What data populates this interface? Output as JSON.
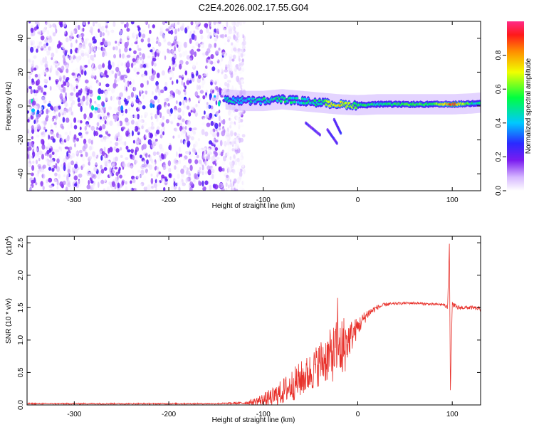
{
  "figure_title": "C2E4.2026.002.17.55.G04",
  "colors": {
    "line": "#e8312b",
    "axes": "#000000"
  },
  "chart_data": [
    {
      "type": "heatmap",
      "title": "C2E4.2026.002.17.55.G04",
      "xlabel": "Height of straight line (km)",
      "ylabel": "Frequency (Hz)",
      "xlim": [
        -350,
        130
      ],
      "ylim": [
        -50,
        50
      ],
      "xticks": [
        -300,
        -200,
        -100,
        0,
        100
      ],
      "xtick_labels": [
        "-300",
        "-200",
        "-100",
        "0",
        "100"
      ],
      "yticks": [
        -40,
        -20,
        0,
        20,
        40
      ],
      "ytick_labels": [
        "-40",
        "-20",
        "0",
        "20",
        "40"
      ],
      "colorbar": {
        "label": "Normalized spectral amplitude",
        "range": [
          0,
          1
        ],
        "ticks": [
          0.0,
          0.2,
          0.4,
          0.6,
          0.8
        ],
        "tick_labels": [
          "0.0",
          "0.2",
          "0.4",
          "0.6",
          "0.8"
        ]
      },
      "noise_region_x": [
        -350,
        -140
      ],
      "signal_trace": {
        "x": [
          -140,
          -120,
          -100,
          -80,
          -60,
          -40,
          -20,
          0,
          20,
          40,
          60,
          80,
          100,
          120,
          130
        ],
        "freq_hz": [
          4,
          3,
          3,
          4,
          3,
          2,
          1,
          0.5,
          1,
          1,
          1,
          1,
          1,
          1.5,
          2
        ],
        "amplitude": [
          0.45,
          0.4,
          0.45,
          0.5,
          0.45,
          0.5,
          0.75,
          0.55,
          0.5,
          0.52,
          0.55,
          0.55,
          0.9,
          0.5,
          0.45
        ]
      },
      "secondary_traces": [
        {
          "x": [
            -55,
            -40
          ],
          "freq_hz": [
            -10,
            -17
          ]
        },
        {
          "x": [
            -32,
            -22
          ],
          "freq_hz": [
            -14,
            -22
          ]
        },
        {
          "x": [
            -25,
            -18
          ],
          "freq_hz": [
            -8,
            -16
          ]
        }
      ]
    },
    {
      "type": "line",
      "xlabel": "Height of straight line (km)",
      "ylabel": "SNR (10 * v/v)",
      "y_scale_label": "(x10",
      "y_scale_exponent": "4",
      "y_scale_close": ")",
      "xlim": [
        -350,
        130
      ],
      "ylim": [
        0,
        2.6
      ],
      "xticks": [
        -300,
        -200,
        -100,
        0,
        100
      ],
      "xtick_labels": [
        "-300",
        "-200",
        "-100",
        "0",
        "100"
      ],
      "yticks": [
        0.0,
        0.5,
        1.0,
        1.5,
        2.0,
        2.5
      ],
      "ytick_labels": [
        "0.0",
        "0.5",
        "1.0",
        "1.5",
        "2.0",
        "2.5"
      ],
      "series": [
        {
          "name": "SNR",
          "x": [
            -350,
            -300,
            -250,
            -200,
            -150,
            -120,
            -110,
            -100,
            -90,
            -80,
            -70,
            -60,
            -50,
            -40,
            -30,
            -20,
            -15,
            -10,
            0,
            10,
            20,
            30,
            40,
            50,
            60,
            70,
            80,
            90,
            95,
            97,
            98,
            100,
            105,
            110,
            120,
            130
          ],
          "y": [
            0.02,
            0.02,
            0.02,
            0.02,
            0.02,
            0.03,
            0.05,
            0.08,
            0.12,
            0.2,
            0.3,
            0.4,
            0.5,
            0.65,
            0.75,
            0.85,
            0.9,
            1.0,
            1.2,
            1.4,
            1.5,
            1.55,
            1.56,
            1.57,
            1.57,
            1.56,
            1.55,
            1.55,
            1.5,
            2.5,
            0.2,
            1.55,
            1.5,
            1.5,
            1.5,
            1.48
          ],
          "noise_amplitude": [
            0.01,
            0.01,
            0.01,
            0.01,
            0.01,
            0.02,
            0.05,
            0.1,
            0.15,
            0.2,
            0.25,
            0.28,
            0.3,
            0.35,
            0.4,
            0.5,
            0.5,
            0.3,
            0.15,
            0.08,
            0.04,
            0.03,
            0.02,
            0.02,
            0.02,
            0.02,
            0.02,
            0.02,
            0.03,
            0.05,
            0.05,
            0.04,
            0.04,
            0.03,
            0.03,
            0.03
          ]
        }
      ]
    }
  ]
}
